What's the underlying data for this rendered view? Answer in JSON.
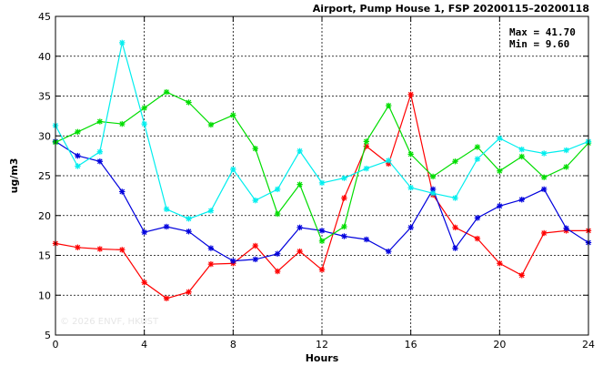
{
  "chart_data": {
    "type": "line",
    "title": "Airport, Pump House 1, FSP 20200115–20200118",
    "xlabel": "Hours",
    "ylabel": "ug/m3",
    "xlim": [
      0,
      24
    ],
    "ylim": [
      5,
      45
    ],
    "xticks": [
      0,
      4,
      8,
      12,
      16,
      20,
      24
    ],
    "yticks": [
      5,
      10,
      15,
      20,
      25,
      30,
      35,
      40,
      45
    ],
    "grid": true,
    "stats": {
      "max_label": "Max = 41.70",
      "min_label": "Min =  9.60"
    },
    "watermark": "© 2026  ENVF, HKUST",
    "x": [
      0,
      1,
      2,
      3,
      4,
      5,
      6,
      7,
      8,
      9,
      10,
      11,
      12,
      13,
      14,
      15,
      16,
      17,
      18,
      19,
      20,
      21,
      22,
      23,
      24
    ],
    "series": [
      {
        "color": "#ff0000",
        "values": [
          16.5,
          16.0,
          15.8,
          15.7,
          11.6,
          9.6,
          10.4,
          13.9,
          14.0,
          16.2,
          13.0,
          15.5,
          13.2,
          22.2,
          28.7,
          26.5,
          35.2,
          22.6,
          18.5,
          17.1,
          14.0,
          12.5,
          17.8,
          18.1,
          18.1
        ]
      },
      {
        "color": "#0000dd",
        "values": [
          29.3,
          27.5,
          26.8,
          23.0,
          17.9,
          18.6,
          18.0,
          15.9,
          14.3,
          14.5,
          15.2,
          18.5,
          18.1,
          17.4,
          17.0,
          15.5,
          18.5,
          23.3,
          15.9,
          19.7,
          21.2,
          22.0,
          23.3,
          18.4,
          16.6
        ]
      },
      {
        "color": "#00dd00",
        "values": [
          29.2,
          30.5,
          31.8,
          31.5,
          33.5,
          35.5,
          34.2,
          31.4,
          32.6,
          28.4,
          20.2,
          23.9,
          16.8,
          18.6,
          29.3,
          33.8,
          27.7,
          24.9,
          26.8,
          28.6,
          25.6,
          27.4,
          24.8,
          26.1,
          29.1
        ]
      },
      {
        "color": "#00eeee",
        "values": [
          31.3,
          26.2,
          28.0,
          41.7,
          31.5,
          20.8,
          19.6,
          20.6,
          25.8,
          21.9,
          23.3,
          28.1,
          24.1,
          24.7,
          25.9,
          26.9,
          23.5,
          22.8,
          22.2,
          27.1,
          29.7,
          28.3,
          27.8,
          28.2,
          29.3
        ]
      }
    ]
  }
}
